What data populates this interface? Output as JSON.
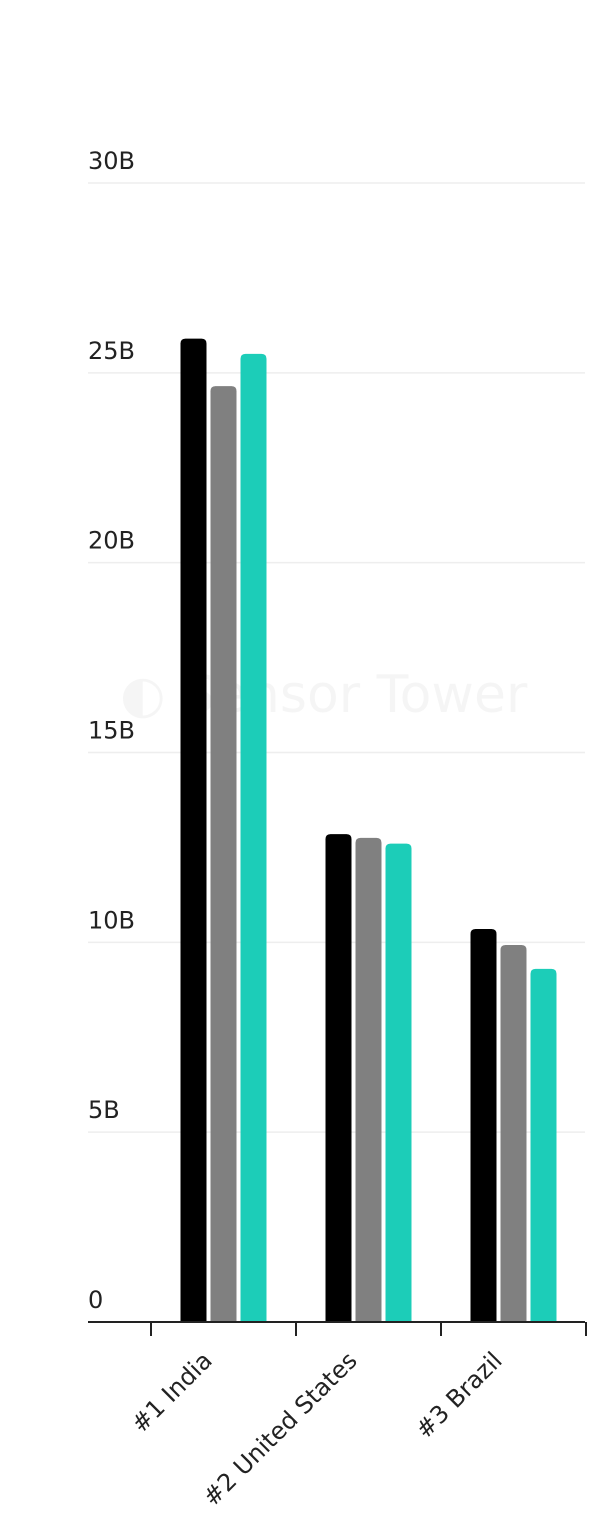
{
  "chart_data": {
    "type": "bar",
    "categories": [
      "#1 India",
      "#2 United States",
      "#3 Brazil"
    ],
    "series": [
      {
        "color": "#000000",
        "values": [
          25.9,
          12.85,
          10.35
        ]
      },
      {
        "color": "#808080",
        "values": [
          24.65,
          12.75,
          9.93
        ]
      },
      {
        "color": "#1ccdb8",
        "values": [
          25.5,
          12.6,
          9.3
        ]
      }
    ],
    "unit": "B",
    "ylim": [
      0,
      30
    ],
    "yticks": [
      0,
      5,
      10,
      15,
      20,
      25,
      30
    ],
    "ytick_labels": [
      "0",
      "5B",
      "10B",
      "15B",
      "20B",
      "25B",
      "30B"
    ],
    "grid": true,
    "watermark": "Sensor Tower"
  }
}
